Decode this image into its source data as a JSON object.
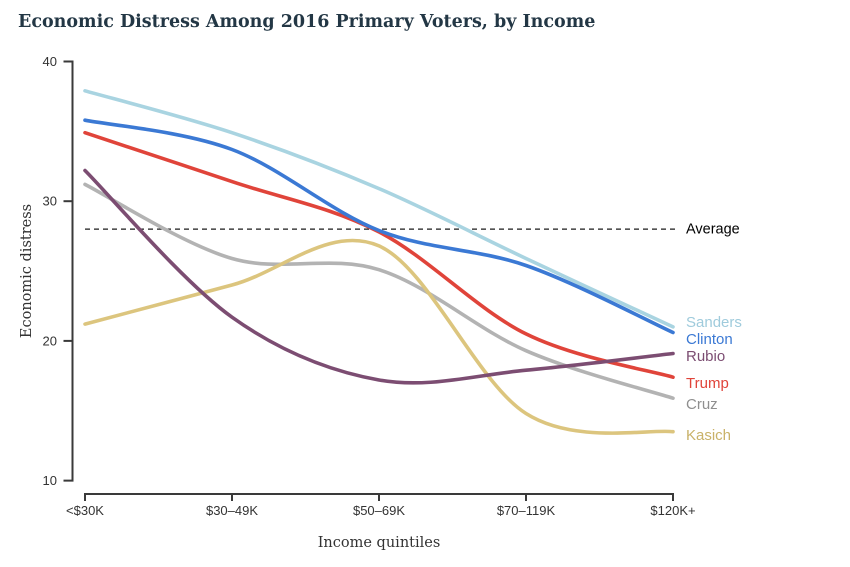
{
  "chart_data": {
    "type": "line",
    "title": "Economic Distress Among 2016 Primary Voters, by Income",
    "xlabel": "Income quintiles",
    "ylabel": "Economic distress",
    "categories": [
      "<$30K",
      "$30–49K",
      "$50–69K",
      "$70–119K",
      "$120K+"
    ],
    "ylim": [
      10,
      40
    ],
    "yticks": [
      10,
      20,
      30,
      40
    ],
    "grid": false,
    "legend_position": "right-end-labels",
    "average_line": {
      "value": 28,
      "label": "Average",
      "style": "dashed",
      "color": "#1a1a1a"
    },
    "series": [
      {
        "name": "Sanders",
        "color": "#a9d4e1",
        "label_color": "#9fcbdc",
        "values": [
          37.9,
          34.9,
          30.9,
          25.9,
          21.0
        ]
      },
      {
        "name": "Clinton",
        "color": "#3b79d4",
        "label_color": "#3b79d4",
        "values": [
          35.8,
          33.7,
          27.9,
          25.4,
          20.6
        ]
      },
      {
        "name": "Rubio",
        "color": "#7c4d72",
        "label_color": "#7c4d72",
        "values": [
          32.2,
          21.7,
          17.2,
          17.9,
          19.1
        ]
      },
      {
        "name": "Trump",
        "color": "#e0443a",
        "label_color": "#e0443a",
        "values": [
          34.9,
          31.4,
          27.8,
          20.5,
          17.4
        ]
      },
      {
        "name": "Cruz",
        "color": "#b3b3b3",
        "label_color": "#8f8f8f",
        "values": [
          31.2,
          25.9,
          25.1,
          19.3,
          15.9
        ]
      },
      {
        "name": "Kasich",
        "color": "#dcc57e",
        "label_color": "#c9b269",
        "values": [
          21.2,
          24.0,
          26.8,
          14.8,
          13.5
        ]
      }
    ]
  }
}
